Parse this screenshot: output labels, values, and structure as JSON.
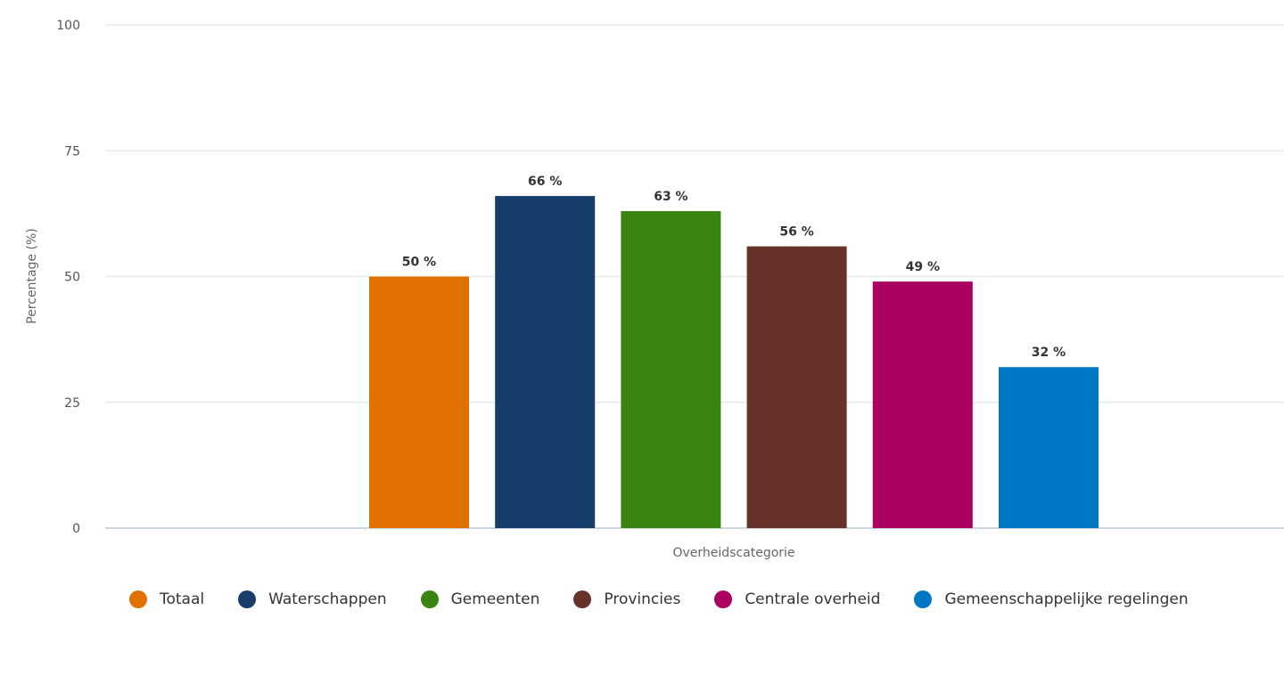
{
  "chart_data": {
    "type": "bar",
    "title": "",
    "xlabel": "Overheidscategorie",
    "ylabel": "Percentage (%)",
    "ylim": [
      0,
      100
    ],
    "yticks": [
      0,
      25,
      50,
      75,
      100
    ],
    "grid": true,
    "legend_placement": "bottom",
    "series": [
      {
        "name": "Totaal",
        "value": 50,
        "label": "50 %",
        "color": "#e07000"
      },
      {
        "name": "Waterschappen",
        "value": 66,
        "label": "66 %",
        "color": "#173e6b"
      },
      {
        "name": "Gemeenten",
        "value": 63,
        "label": "63 %",
        "color": "#3a8414"
      },
      {
        "name": "Provincies",
        "value": 56,
        "label": "56 %",
        "color": "#663229"
      },
      {
        "name": "Centrale overheid",
        "value": 49,
        "label": "49 %",
        "color": "#a90061"
      },
      {
        "name": "Gemeenschappelijke regelingen",
        "value": 32,
        "label": "32 %",
        "color": "#0077c4"
      }
    ]
  }
}
